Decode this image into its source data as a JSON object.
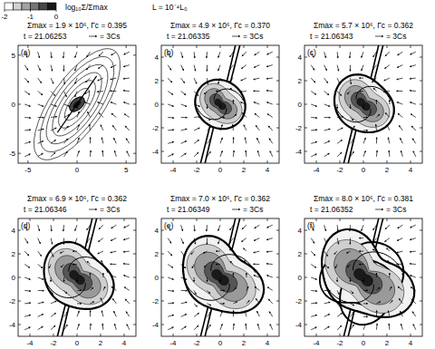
{
  "chart_data": [
    {
      "type": "contour",
      "panel": "(a)",
      "title": "Σmax = 1.9 × 10⁶, Γc = 0.395",
      "subtitle": "t = 21.06253",
      "annotations": [
        "= 3Cs"
      ],
      "xlim": [
        -6,
        6
      ],
      "ylim": [
        -6,
        6
      ],
      "xticks": [
        -5,
        0,
        5
      ],
      "yticks": [
        -5,
        0,
        5
      ]
    },
    {
      "type": "contour",
      "panel": "(b)",
      "title": "Σmax = 4.9 × 10⁶, Γc = 0.370",
      "subtitle": "t = 21.06335",
      "annotations": [
        "= 3Cs"
      ],
      "xlim": [
        -5,
        5
      ],
      "ylim": [
        -5,
        5
      ],
      "xticks": [
        -4,
        -2,
        0,
        2,
        4
      ],
      "yticks": [
        -4,
        -2,
        0,
        2,
        4
      ]
    },
    {
      "type": "contour",
      "panel": "(c)",
      "title": "Σmax = 5.7 × 10⁶, Γc = 0.362",
      "subtitle": "t = 21.06343",
      "annotations": [
        "= 3Cs"
      ],
      "xlim": [
        -5,
        5
      ],
      "ylim": [
        -5,
        5
      ],
      "xticks": [
        -4,
        -2,
        0,
        2,
        4
      ],
      "yticks": [
        -4,
        -2,
        0,
        2,
        4
      ]
    },
    {
      "type": "contour",
      "panel": "(d)",
      "title": "Σmax = 6.9 × 10⁶, Γc = 0.362",
      "subtitle": "t = 21.06346",
      "annotations": [
        "= 3Cs"
      ],
      "xlim": [
        -5,
        5
      ],
      "ylim": [
        -5,
        5
      ],
      "xticks": [
        -4,
        -2,
        0,
        2,
        4
      ],
      "yticks": [
        -4,
        -2,
        0,
        2,
        4
      ]
    },
    {
      "type": "contour",
      "panel": "(e)",
      "title": "Σmax = 7.0 × 10⁶, Γc = 0.362",
      "subtitle": "t = 21.06349",
      "annotations": [
        "= 3Cs"
      ],
      "xlim": [
        -5,
        5
      ],
      "ylim": [
        -5,
        5
      ],
      "xticks": [
        -4,
        -2,
        0,
        2,
        4
      ],
      "yticks": [
        -4,
        -2,
        0,
        2,
        4
      ]
    },
    {
      "type": "contour",
      "panel": "(f)",
      "title": "Σmax = 8.0 × 10⁶, Γc = 0.381",
      "subtitle": "t = 21.06352",
      "annotations": [
        "= 3Cs"
      ],
      "xlim": [
        -5,
        5
      ],
      "ylim": [
        -5,
        5
      ],
      "xticks": [
        -4,
        -2,
        0,
        2,
        4
      ],
      "yticks": [
        -4,
        -2,
        0,
        2,
        4
      ]
    }
  ],
  "colorbar": {
    "label": "log₁₀Σ/Σmax",
    "range": [
      -2,
      0
    ],
    "ticks": [
      -2,
      -1,
      0
    ],
    "note": "L = 10⁻⁴L₀"
  }
}
